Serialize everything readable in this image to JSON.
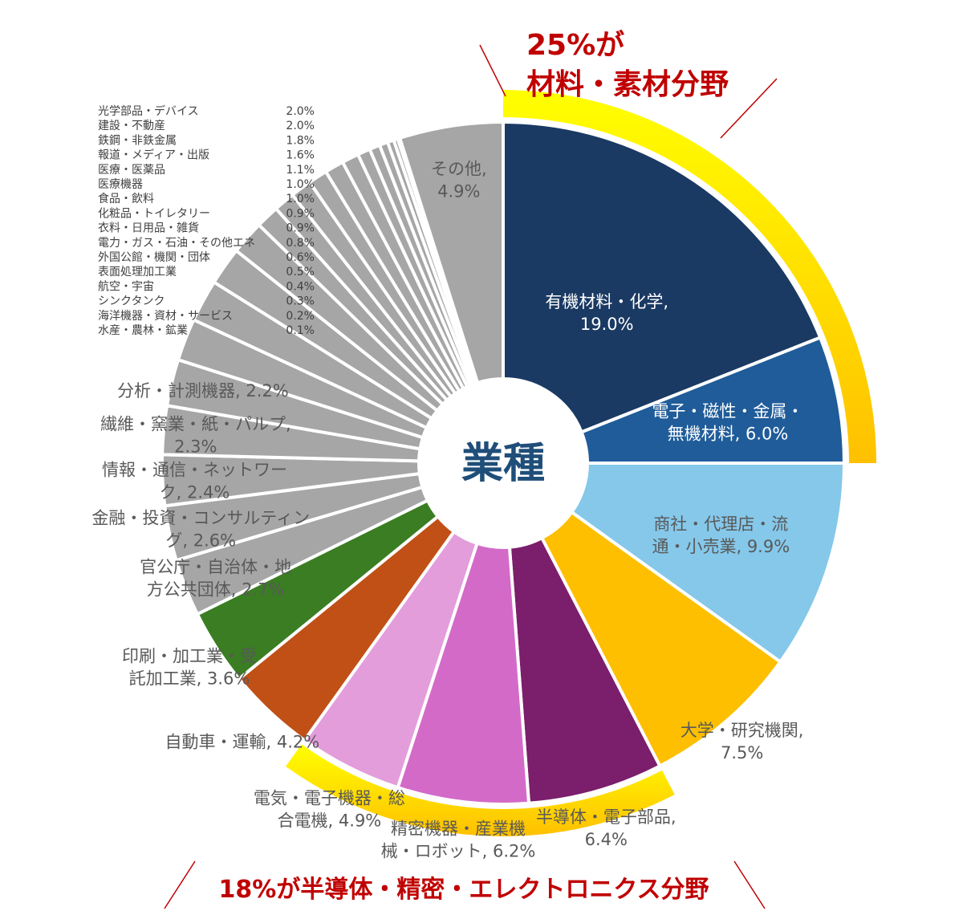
{
  "chart_data": {
    "type": "pie",
    "variant": "donut",
    "center_label": "業種",
    "slices": [
      {
        "label": "有機材料・化学",
        "line1": "有機材料・化学,",
        "line2": "19.0%",
        "value": 19.0,
        "color": "#1a3a63"
      },
      {
        "label": "電子・磁性・金属・無機材料",
        "line1": "電子・磁性・金属・",
        "line2": "無機材料, 6.0%",
        "value": 6.0,
        "color": "#1f5c99"
      },
      {
        "label": "商社・代理店・流通・小売業",
        "line1": "商社・代理店・流",
        "line2": "通・小売業, 9.9%",
        "value": 9.9,
        "color": "#85c8ea"
      },
      {
        "label": "大学・研究機関",
        "line1": "大学・研究機関,",
        "line2": "7.5%",
        "value": 7.5,
        "color": "#fdbf00"
      },
      {
        "label": "半導体・電子部品",
        "line1": "半導体・電子部品,",
        "line2": "6.4%",
        "value": 6.4,
        "color": "#7b1e6b"
      },
      {
        "label": "精密機器・産業機械・ロボット",
        "line1": "精密機器・産業機",
        "line2": "械・ロボット, 6.2%",
        "value": 6.2,
        "color": "#d36ac8"
      },
      {
        "label": "電気・電子機器・総合電機",
        "line1": "電気・電子機器・総",
        "line2": "合電機, 4.9%",
        "value": 4.9,
        "color": "#e39ddb"
      },
      {
        "label": "自動車・運輸",
        "line1": "自動車・運輸, 4.2%",
        "line2": "",
        "value": 4.2,
        "color": "#c05016"
      },
      {
        "label": "印刷・加工業・受託加工業",
        "line1": "印刷・加工業・受",
        "line2": "託加工業, 3.6%",
        "value": 3.6,
        "color": "#3a7d22"
      },
      {
        "label": "官公庁・自治体・地方公共団体",
        "line1": "官公庁・自治体・地",
        "line2": "方公共団体, 2.7%",
        "value": 2.7,
        "color": "#a6a6a6"
      },
      {
        "label": "金融・投資・コンサルティング",
        "line1": "金融・投資・コンサルティン",
        "line2": "グ, 2.6%",
        "value": 2.6,
        "color": "#a6a6a6"
      },
      {
        "label": "情報・通信・ネットワーク",
        "line1": "情報・通信・ネットワー",
        "line2": "ク, 2.4%",
        "value": 2.4,
        "color": "#a6a6a6"
      },
      {
        "label": "繊維・窯業・紙・パルプ",
        "line1": "繊維・窯業・紙・パルプ,",
        "line2": "2.3%",
        "value": 2.3,
        "color": "#a6a6a6"
      },
      {
        "label": "分析・計測機器",
        "line1": "分析・計測機器, 2.2%",
        "line2": "",
        "value": 2.2,
        "color": "#a6a6a6"
      },
      {
        "label": "光学部品・デバイス",
        "value": 2.0,
        "color": "#a6a6a6",
        "small": true,
        "pct": "2.0%"
      },
      {
        "label": "建設・不動産",
        "value": 2.0,
        "color": "#a6a6a6",
        "small": true,
        "pct": "2.0%"
      },
      {
        "label": "鉄鋼・非鉄金属",
        "value": 1.8,
        "color": "#a6a6a6",
        "small": true,
        "pct": "1.8%"
      },
      {
        "label": "報道・メディア・出版",
        "value": 1.6,
        "color": "#a6a6a6",
        "small": true,
        "pct": "1.6%"
      },
      {
        "label": "医療・医薬品",
        "value": 1.1,
        "color": "#a6a6a6",
        "small": true,
        "pct": "1.1%"
      },
      {
        "label": "医療機器",
        "value": 1.0,
        "color": "#a6a6a6",
        "small": true,
        "pct": "1.0%"
      },
      {
        "label": "食品・飲料",
        "value": 1.0,
        "color": "#a6a6a6",
        "small": true,
        "pct": "1.0%"
      },
      {
        "label": "化粧品・トイレタリー",
        "value": 0.9,
        "color": "#a6a6a6",
        "small": true,
        "pct": "0.9%"
      },
      {
        "label": "衣料・日用品・雑貨",
        "value": 0.9,
        "color": "#a6a6a6",
        "small": true,
        "pct": "0.9%"
      },
      {
        "label": "電力・ガス・石油・その他エネ",
        "value": 0.8,
        "color": "#a6a6a6",
        "small": true,
        "pct": "0.8%"
      },
      {
        "label": "外国公館・機関・団体",
        "value": 0.6,
        "color": "#a6a6a6",
        "small": true,
        "pct": "0.6%"
      },
      {
        "label": "表面処理加工業",
        "value": 0.5,
        "color": "#a6a6a6",
        "small": true,
        "pct": "0.5%"
      },
      {
        "label": "航空・宇宙",
        "value": 0.4,
        "color": "#a6a6a6",
        "small": true,
        "pct": "0.4%"
      },
      {
        "label": "シンクタンク",
        "value": 0.3,
        "color": "#a6a6a6",
        "small": true,
        "pct": "0.3%"
      },
      {
        "label": "海洋機器・資材・サービス",
        "value": 0.2,
        "color": "#a6a6a6",
        "small": true,
        "pct": "0.2%"
      },
      {
        "label": "水産・農林・鉱業",
        "value": 0.1,
        "color": "#a6a6a6",
        "small": true,
        "pct": "0.1%"
      },
      {
        "label": "その他",
        "line1": "その他,",
        "line2": "4.9%",
        "value": 4.9,
        "color": "#a6a6a6"
      }
    ],
    "annotations": [
      {
        "line1": "25%が",
        "line2": "材料・素材分野",
        "covers": [
          "有機材料・化学",
          "電子・磁性・金属・無機材料"
        ],
        "color": "#c00000"
      },
      {
        "line1": "18%が半導体・精密・エレクトロニクス分野",
        "line2": "",
        "covers": [
          "半導体・電子部品",
          "精密機器・産業機械・ロボット",
          "電気・電子機器・総合電機"
        ],
        "color": "#c00000"
      }
    ],
    "highlight_colors": {
      "gold_start": "#ffff00",
      "gold_end": "#ffc000"
    }
  }
}
